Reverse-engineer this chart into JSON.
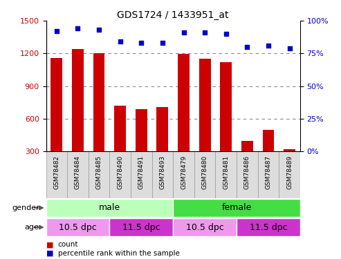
{
  "title": "GDS1724 / 1433951_at",
  "samples": [
    "GSM78482",
    "GSM78484",
    "GSM78485",
    "GSM78490",
    "GSM78491",
    "GSM78493",
    "GSM78479",
    "GSM78480",
    "GSM78481",
    "GSM78486",
    "GSM78487",
    "GSM78489"
  ],
  "counts": [
    1155,
    1240,
    1205,
    720,
    690,
    710,
    1195,
    1150,
    1120,
    395,
    500,
    320
  ],
  "percentiles": [
    92,
    94,
    93,
    84,
    83,
    83,
    91,
    91,
    90,
    80,
    81,
    79
  ],
  "ylim_left": [
    300,
    1500
  ],
  "ylim_right": [
    0,
    100
  ],
  "yticks_left": [
    300,
    600,
    900,
    1200,
    1500
  ],
  "yticks_right": [
    0,
    25,
    50,
    75,
    100
  ],
  "bar_color": "#cc0000",
  "dot_color": "#0000cc",
  "gender_groups": [
    {
      "label": "male",
      "start": 0,
      "end": 5,
      "color": "#bbffbb"
    },
    {
      "label": "female",
      "start": 6,
      "end": 11,
      "color": "#44dd44"
    }
  ],
  "age_groups": [
    {
      "label": "10.5 dpc",
      "start": 0,
      "end": 2,
      "color": "#ee99ee"
    },
    {
      "label": "11.5 dpc",
      "start": 3,
      "end": 5,
      "color": "#cc33cc"
    },
    {
      "label": "10.5 dpc",
      "start": 6,
      "end": 8,
      "color": "#ee99ee"
    },
    {
      "label": "11.5 dpc",
      "start": 9,
      "end": 11,
      "color": "#cc33cc"
    }
  ],
  "grid_yticks": [
    600,
    900,
    1200
  ],
  "legend_count_color": "#cc0000",
  "legend_pct_color": "#0000cc",
  "legend_count_label": "count",
  "legend_pct_label": "percentile rank within the sample",
  "bg_color": "#ffffff",
  "grid_color": "#888888",
  "tick_color_left": "#cc0000",
  "tick_color_right": "#0000cc",
  "sample_box_color": "#dddddd",
  "sample_box_edge_color": "#999999"
}
